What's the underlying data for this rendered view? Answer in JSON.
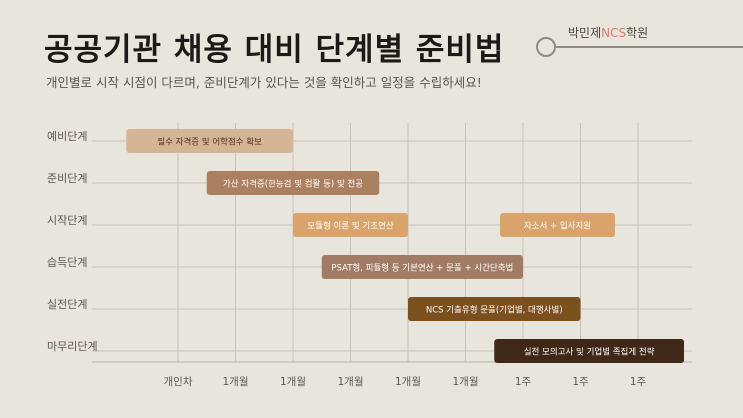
{
  "header": {
    "title": "공공기관 채용 대비 단계별 준비법",
    "subtitle": "개인별로 시작 시점이 다르며, 준비단계가 있다는 것을 확인하고 일정을 수립하세요!",
    "brand_prefix": "박민제",
    "brand_highlight": "NCS",
    "brand_suffix": "학원"
  },
  "chart_data": {
    "type": "gantt",
    "title": "",
    "stages": [
      "예비단계",
      "준비단계",
      "시작단계",
      "습득단계",
      "실전단계",
      "마무리단계"
    ],
    "x_ticks": [
      "개인차",
      "1개월",
      "1개월",
      "1개월",
      "1개월",
      "1개월",
      "1주",
      "1주",
      "1주"
    ],
    "tasks": [
      {
        "stage": "예비단계",
        "label": "필수 자격증 및 어학점수 확보",
        "start": -0.9,
        "end": 2.0,
        "color": "#d4b596",
        "text": "dark"
      },
      {
        "stage": "준비단계",
        "label": "가산 자격증(한능검 및 컴활 등) 및 전공",
        "start": 0.5,
        "end": 3.5,
        "color": "#ab8061",
        "text": "light"
      },
      {
        "stage": "시작단계",
        "label": "모듈형 이론 및 기초연산",
        "start": 2.0,
        "end": 4.0,
        "color": "#d9a46b",
        "text": "light"
      },
      {
        "stage": "시작단계",
        "label": "자소서 + 입사지원",
        "start": 5.6,
        "end": 7.6,
        "color": "#d9a46b",
        "text": "light"
      },
      {
        "stage": "습득단계",
        "label": "PSAT형, 피듈형 등 기본연산 + 문풀 + 시간단축법",
        "start": 2.5,
        "end": 6.0,
        "color": "#a17b63",
        "text": "light"
      },
      {
        "stage": "실전단계",
        "label": "NCS 기출유형 문풀(기업별, 대행사별)",
        "start": 4.0,
        "end": 7.0,
        "color": "#7c4f1e",
        "text": "light"
      },
      {
        "stage": "마무리단계",
        "label": "실전 모의고사 및 기업별 족집게 전략",
        "start": 5.5,
        "end": 8.8,
        "color": "#3f2818",
        "text": "light"
      }
    ],
    "grid": true
  }
}
